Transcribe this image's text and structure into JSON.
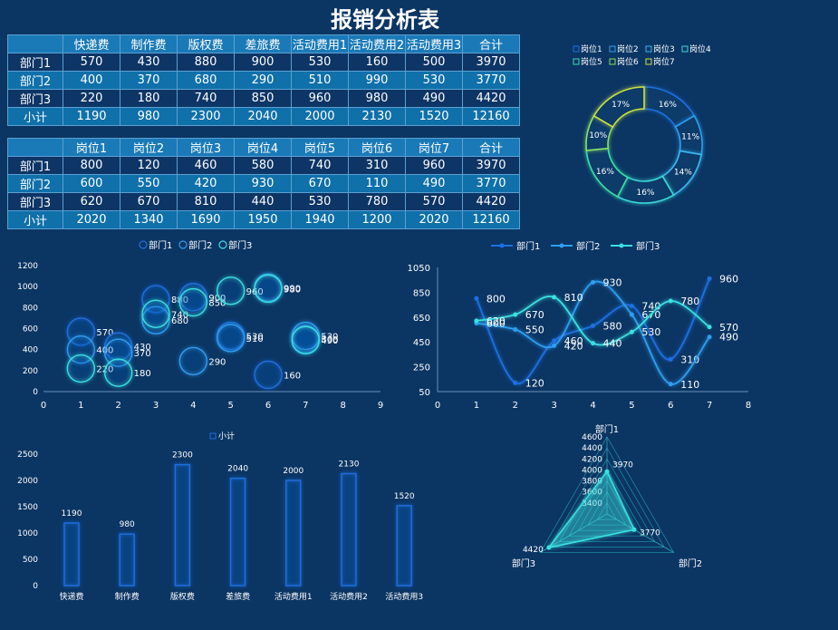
{
  "page_title": "报销分析表",
  "table1": {
    "headers": [
      "",
      "快递费",
      "制作费",
      "版权费",
      "差旅费",
      "活动费用1",
      "活动费用2",
      "活动费用3",
      "合计"
    ],
    "rows": [
      [
        "部门1",
        "570",
        "430",
        "880",
        "900",
        "530",
        "160",
        "500",
        "3970"
      ],
      [
        "部门2",
        "400",
        "370",
        "680",
        "290",
        "510",
        "990",
        "530",
        "3770"
      ],
      [
        "部门3",
        "220",
        "180",
        "740",
        "850",
        "960",
        "980",
        "490",
        "4420"
      ],
      [
        "小计",
        "1190",
        "980",
        "2300",
        "2040",
        "2000",
        "2130",
        "1520",
        "12160"
      ]
    ]
  },
  "table2": {
    "headers": [
      "",
      "岗位1",
      "岗位2",
      "岗位3",
      "岗位4",
      "岗位5",
      "岗位6",
      "岗位7",
      "合计"
    ],
    "rows": [
      [
        "部门1",
        "800",
        "120",
        "460",
        "580",
        "740",
        "310",
        "960",
        "3970"
      ],
      [
        "部门2",
        "600",
        "550",
        "420",
        "930",
        "670",
        "110",
        "490",
        "3770"
      ],
      [
        "部门3",
        "620",
        "670",
        "810",
        "440",
        "530",
        "780",
        "570",
        "4420"
      ],
      [
        "小计",
        "2020",
        "1340",
        "1690",
        "1950",
        "1940",
        "1200",
        "2020",
        "12160"
      ]
    ]
  },
  "colors": {
    "background": "#0b3563",
    "series1": "#1f6fe0",
    "series2": "#2f9ef0",
    "series3": "#3ae0e0",
    "table_header": "#1a7ab8",
    "table_row_alt": "#0f70aa",
    "table_border": "#5da0d0"
  },
  "chart_data": [
    {
      "type": "pie",
      "variant": "donut",
      "legend": [
        "岗位1",
        "岗位2",
        "岗位3",
        "岗位4",
        "岗位5",
        "岗位6",
        "岗位7"
      ],
      "labels": [
        "16%",
        "11%",
        "14%",
        "16%",
        "16%",
        "10%",
        "17%"
      ],
      "values": [
        2020,
        1340,
        1690,
        1950,
        1940,
        1200,
        2020
      ],
      "legend_placement": "top"
    },
    {
      "type": "scatter",
      "variant": "bubble",
      "legend": [
        "部门1",
        "部门2",
        "部门3"
      ],
      "x": [
        1,
        2,
        3,
        4,
        5,
        6,
        7
      ],
      "series": [
        {
          "name": "部门1",
          "values": [
            570,
            430,
            880,
            900,
            530,
            160,
            500
          ]
        },
        {
          "name": "部门2",
          "values": [
            400,
            370,
            680,
            290,
            510,
            990,
            530
          ]
        },
        {
          "name": "部门3",
          "values": [
            220,
            180,
            740,
            850,
            960,
            980,
            490
          ]
        }
      ],
      "point_labels": [
        [
          "570",
          "430",
          "880",
          "900",
          "530",
          "160",
          "500"
        ],
        [
          "400",
          "370",
          "680",
          "290",
          "510",
          "990",
          "530"
        ],
        [
          "220",
          "180",
          "740",
          "850",
          "960",
          "980",
          "490"
        ]
      ],
      "xlim": [
        0,
        9
      ],
      "ylim": [
        0,
        1200
      ],
      "x_ticks": [
        "0",
        "1",
        "2",
        "3",
        "4",
        "5",
        "6",
        "7",
        "8",
        "9"
      ],
      "y_ticks": [
        "0",
        "200",
        "400",
        "600",
        "800",
        "1000",
        "1200"
      ],
      "legend_placement": "top"
    },
    {
      "type": "line",
      "variant": "smooth",
      "legend": [
        "部门1",
        "部门2",
        "部门3"
      ],
      "x": [
        1,
        2,
        3,
        4,
        5,
        6,
        7
      ],
      "series": [
        {
          "name": "部门1",
          "values": [
            800,
            120,
            460,
            580,
            740,
            310,
            960
          ]
        },
        {
          "name": "部门2",
          "values": [
            600,
            550,
            420,
            930,
            670,
            110,
            490
          ]
        },
        {
          "name": "部门3",
          "values": [
            620,
            670,
            810,
            440,
            530,
            780,
            570
          ]
        }
      ],
      "point_labels": [
        [
          "800",
          "120",
          "460",
          "580",
          "740",
          "310",
          "960"
        ],
        [
          "600",
          "550",
          "420",
          "930",
          "670",
          "110",
          "490"
        ],
        [
          "620",
          "670",
          "810",
          "440",
          "530",
          "780",
          "570"
        ]
      ],
      "xlim": [
        0,
        8
      ],
      "ylim": [
        50,
        1050
      ],
      "x_ticks": [
        "0",
        "1",
        "2",
        "3",
        "4",
        "5",
        "6",
        "7",
        "8"
      ],
      "y_ticks": [
        "50",
        "250",
        "450",
        "650",
        "850",
        "1050"
      ],
      "legend_placement": "top"
    },
    {
      "type": "bar",
      "legend": [
        "小计"
      ],
      "categories": [
        "快递费",
        "制作费",
        "版权费",
        "差旅费",
        "活动费用1",
        "活动费用2",
        "活动费用3"
      ],
      "values": [
        1190,
        980,
        2300,
        2040,
        2000,
        2130,
        1520
      ],
      "value_labels": [
        "1190",
        "980",
        "2300",
        "2040",
        "2000",
        "2130",
        "1520"
      ],
      "ylim": [
        0,
        2500
      ],
      "y_ticks": [
        "0",
        "500",
        "1000",
        "1500",
        "2000",
        "2500"
      ],
      "legend_placement": "top"
    },
    {
      "type": "radar",
      "axes": [
        "部门1",
        "部门2",
        "部门3"
      ],
      "values": [
        3970,
        3770,
        4420
      ],
      "value_labels": [
        "3970",
        "3770",
        "4420"
      ],
      "rlim": [
        3200,
        4600
      ],
      "r_ticks": [
        "3400",
        "3600",
        "3800",
        "4000",
        "4200",
        "4400",
        "4600"
      ]
    }
  ]
}
